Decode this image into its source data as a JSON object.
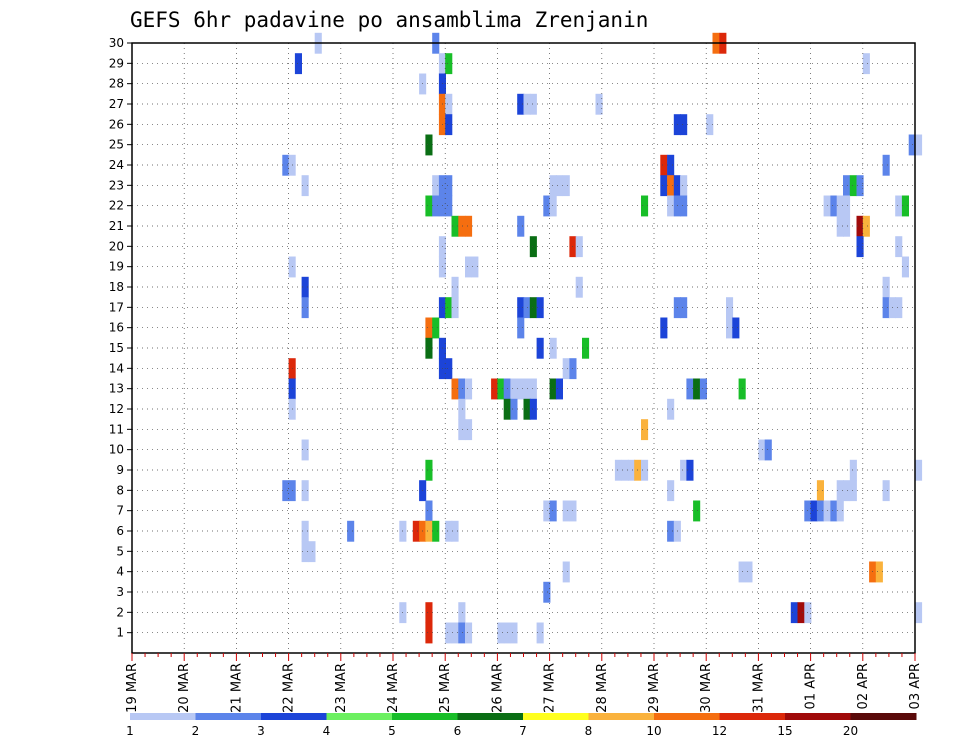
{
  "chart_data": {
    "type": "heatmap",
    "title": "GEFS 6hr padavine po ansamblima Zrenjanin",
    "xlabel": "",
    "ylabel": "",
    "x_tick_labels": [
      "19 MAR",
      "20 MAR",
      "21 MAR",
      "22 MAR",
      "23 MAR",
      "24 MAR",
      "25 MAR",
      "26 MAR",
      "27 MAR",
      "28 MAR",
      "29 MAR",
      "30 MAR",
      "31 MAR",
      "01 APR",
      "02 APR",
      "03 APR"
    ],
    "y_tick_labels": [
      "1",
      "2",
      "3",
      "4",
      "5",
      "6",
      "7",
      "8",
      "9",
      "10",
      "11",
      "12",
      "13",
      "14",
      "15",
      "16",
      "17",
      "18",
      "19",
      "20",
      "21",
      "22",
      "23",
      "24",
      "25",
      "26",
      "27",
      "28",
      "29",
      "30"
    ],
    "x_range_days": [
      0,
      15
    ],
    "y_range": [
      0,
      30
    ],
    "grid": true,
    "colorbar": {
      "labels": [
        "1",
        "2",
        "3",
        "4",
        "5",
        "6",
        "7",
        "8",
        "10",
        "12",
        "15",
        "20"
      ],
      "colors": [
        "#b8c8f4",
        "#5c84ea",
        "#1c44d8",
        "#6cf060",
        "#18be28",
        "#0a6e14",
        "#ffff1e",
        "#fab23c",
        "#f56e10",
        "#dc280a",
        "#a00a0a",
        "#5a0a0a"
      ]
    },
    "cells": [
      {
        "t": 11.12,
        "m": 30,
        "v": 10
      },
      {
        "t": 11.25,
        "m": 30,
        "v": 12
      },
      {
        "t": 3.5,
        "m": 30,
        "v": 1
      },
      {
        "t": 5.75,
        "m": 30,
        "v": 2
      },
      {
        "t": 3.12,
        "m": 29,
        "v": 3
      },
      {
        "t": 5.88,
        "m": 29,
        "v": 1
      },
      {
        "t": 6.0,
        "m": 29,
        "v": 5
      },
      {
        "t": 14.0,
        "m": 29,
        "v": 1
      },
      {
        "t": 5.88,
        "m": 28,
        "v": 3
      },
      {
        "t": 5.5,
        "m": 28,
        "v": 1
      },
      {
        "t": 5.88,
        "m": 27,
        "v": 10
      },
      {
        "t": 6.0,
        "m": 27,
        "v": 1
      },
      {
        "t": 7.38,
        "m": 27,
        "v": 3
      },
      {
        "t": 7.5,
        "m": 27,
        "v": 1
      },
      {
        "t": 7.62,
        "m": 27,
        "v": 1
      },
      {
        "t": 8.88,
        "m": 27,
        "v": 1
      },
      {
        "t": 5.88,
        "m": 26,
        "v": 10
      },
      {
        "t": 6.0,
        "m": 26,
        "v": 3
      },
      {
        "t": 10.38,
        "m": 26,
        "v": 3
      },
      {
        "t": 10.5,
        "m": 26,
        "v": 3
      },
      {
        "t": 11.0,
        "m": 26,
        "v": 1
      },
      {
        "t": 5.62,
        "m": 25,
        "v": 6
      },
      {
        "t": 14.88,
        "m": 25,
        "v": 2
      },
      {
        "t": 15.0,
        "m": 25,
        "v": 1
      },
      {
        "t": 2.88,
        "m": 24,
        "v": 2
      },
      {
        "t": 3.0,
        "m": 24,
        "v": 1
      },
      {
        "t": 10.12,
        "m": 24,
        "v": 12
      },
      {
        "t": 10.25,
        "m": 24,
        "v": 3
      },
      {
        "t": 14.38,
        "m": 24,
        "v": 2
      },
      {
        "t": 3.25,
        "m": 23,
        "v": 1
      },
      {
        "t": 5.75,
        "m": 23,
        "v": 1
      },
      {
        "t": 5.88,
        "m": 23,
        "v": 2
      },
      {
        "t": 6.0,
        "m": 23,
        "v": 2
      },
      {
        "t": 8.0,
        "m": 23,
        "v": 1
      },
      {
        "t": 8.12,
        "m": 23,
        "v": 1
      },
      {
        "t": 8.25,
        "m": 23,
        "v": 1
      },
      {
        "t": 10.12,
        "m": 23,
        "v": 3
      },
      {
        "t": 10.25,
        "m": 23,
        "v": 10
      },
      {
        "t": 10.38,
        "m": 23,
        "v": 3
      },
      {
        "t": 10.5,
        "m": 23,
        "v": 1
      },
      {
        "t": 13.62,
        "m": 23,
        "v": 2
      },
      {
        "t": 13.75,
        "m": 23,
        "v": 5
      },
      {
        "t": 13.88,
        "m": 23,
        "v": 2
      },
      {
        "t": 5.62,
        "m": 22,
        "v": 5
      },
      {
        "t": 5.75,
        "m": 22,
        "v": 2
      },
      {
        "t": 5.88,
        "m": 22,
        "v": 2
      },
      {
        "t": 6.0,
        "m": 22,
        "v": 2
      },
      {
        "t": 7.88,
        "m": 22,
        "v": 2
      },
      {
        "t": 8.0,
        "m": 22,
        "v": 1
      },
      {
        "t": 9.75,
        "m": 22,
        "v": 5
      },
      {
        "t": 10.25,
        "m": 22,
        "v": 1
      },
      {
        "t": 10.38,
        "m": 22,
        "v": 2
      },
      {
        "t": 10.5,
        "m": 22,
        "v": 2
      },
      {
        "t": 13.25,
        "m": 22,
        "v": 1
      },
      {
        "t": 13.38,
        "m": 22,
        "v": 2
      },
      {
        "t": 13.5,
        "m": 22,
        "v": 1
      },
      {
        "t": 13.62,
        "m": 22,
        "v": 1
      },
      {
        "t": 14.62,
        "m": 22,
        "v": 1
      },
      {
        "t": 14.75,
        "m": 22,
        "v": 5
      },
      {
        "t": 6.12,
        "m": 21,
        "v": 5
      },
      {
        "t": 6.25,
        "m": 21,
        "v": 10
      },
      {
        "t": 6.38,
        "m": 21,
        "v": 10
      },
      {
        "t": 7.38,
        "m": 21,
        "v": 2
      },
      {
        "t": 13.5,
        "m": 21,
        "v": 1
      },
      {
        "t": 13.62,
        "m": 21,
        "v": 1
      },
      {
        "t": 13.88,
        "m": 21,
        "v": 15
      },
      {
        "t": 14.0,
        "m": 21,
        "v": 8
      },
      {
        "t": 5.88,
        "m": 20,
        "v": 1
      },
      {
        "t": 7.62,
        "m": 20,
        "v": 6
      },
      {
        "t": 8.38,
        "m": 20,
        "v": 12
      },
      {
        "t": 8.5,
        "m": 20,
        "v": 1
      },
      {
        "t": 13.88,
        "m": 20,
        "v": 3
      },
      {
        "t": 14.62,
        "m": 20,
        "v": 1
      },
      {
        "t": 3.0,
        "m": 19,
        "v": 1
      },
      {
        "t": 5.88,
        "m": 19,
        "v": 1
      },
      {
        "t": 6.38,
        "m": 19,
        "v": 1
      },
      {
        "t": 6.5,
        "m": 19,
        "v": 1
      },
      {
        "t": 14.75,
        "m": 19,
        "v": 1
      },
      {
        "t": 3.25,
        "m": 18,
        "v": 3
      },
      {
        "t": 6.12,
        "m": 18,
        "v": 1
      },
      {
        "t": 8.5,
        "m": 18,
        "v": 1
      },
      {
        "t": 14.38,
        "m": 18,
        "v": 1
      },
      {
        "t": 3.25,
        "m": 17,
        "v": 2
      },
      {
        "t": 5.88,
        "m": 17,
        "v": 3
      },
      {
        "t": 6.0,
        "m": 17,
        "v": 5
      },
      {
        "t": 6.12,
        "m": 17,
        "v": 1
      },
      {
        "t": 7.38,
        "m": 17,
        "v": 3
      },
      {
        "t": 7.5,
        "m": 17,
        "v": 2
      },
      {
        "t": 7.62,
        "m": 17,
        "v": 6
      },
      {
        "t": 7.75,
        "m": 17,
        "v": 3
      },
      {
        "t": 10.38,
        "m": 17,
        "v": 2
      },
      {
        "t": 10.5,
        "m": 17,
        "v": 2
      },
      {
        "t": 11.38,
        "m": 17,
        "v": 1
      },
      {
        "t": 14.38,
        "m": 17,
        "v": 2
      },
      {
        "t": 14.5,
        "m": 17,
        "v": 1
      },
      {
        "t": 14.62,
        "m": 17,
        "v": 1
      },
      {
        "t": 5.62,
        "m": 16,
        "v": 10
      },
      {
        "t": 5.75,
        "m": 16,
        "v": 5
      },
      {
        "t": 7.38,
        "m": 16,
        "v": 2
      },
      {
        "t": 10.12,
        "m": 16,
        "v": 3
      },
      {
        "t": 11.38,
        "m": 16,
        "v": 1
      },
      {
        "t": 11.5,
        "m": 16,
        "v": 3
      },
      {
        "t": 5.62,
        "m": 15,
        "v": 6
      },
      {
        "t": 5.88,
        "m": 15,
        "v": 3
      },
      {
        "t": 7.75,
        "m": 15,
        "v": 3
      },
      {
        "t": 8.0,
        "m": 15,
        "v": 1
      },
      {
        "t": 8.62,
        "m": 15,
        "v": 5
      },
      {
        "t": 3.0,
        "m": 14,
        "v": 12
      },
      {
        "t": 5.88,
        "m": 14,
        "v": 3
      },
      {
        "t": 6.0,
        "m": 14,
        "v": 3
      },
      {
        "t": 8.25,
        "m": 14,
        "v": 1
      },
      {
        "t": 8.38,
        "m": 14,
        "v": 2
      },
      {
        "t": 3.0,
        "m": 13,
        "v": 3
      },
      {
        "t": 6.12,
        "m": 13,
        "v": 10
      },
      {
        "t": 6.25,
        "m": 13,
        "v": 2
      },
      {
        "t": 6.38,
        "m": 13,
        "v": 1
      },
      {
        "t": 6.88,
        "m": 13,
        "v": 12
      },
      {
        "t": 7.0,
        "m": 13,
        "v": 5
      },
      {
        "t": 7.12,
        "m": 13,
        "v": 2
      },
      {
        "t": 7.25,
        "m": 13,
        "v": 1
      },
      {
        "t": 7.38,
        "m": 13,
        "v": 1
      },
      {
        "t": 7.5,
        "m": 13,
        "v": 1
      },
      {
        "t": 7.62,
        "m": 13,
        "v": 1
      },
      {
        "t": 8.0,
        "m": 13,
        "v": 6
      },
      {
        "t": 8.12,
        "m": 13,
        "v": 3
      },
      {
        "t": 10.62,
        "m": 13,
        "v": 2
      },
      {
        "t": 10.75,
        "m": 13,
        "v": 6
      },
      {
        "t": 10.88,
        "m": 13,
        "v": 2
      },
      {
        "t": 11.62,
        "m": 13,
        "v": 5
      },
      {
        "t": 3.0,
        "m": 12,
        "v": 1
      },
      {
        "t": 6.25,
        "m": 12,
        "v": 1
      },
      {
        "t": 7.12,
        "m": 12,
        "v": 6
      },
      {
        "t": 7.25,
        "m": 12,
        "v": 2
      },
      {
        "t": 7.5,
        "m": 12,
        "v": 6
      },
      {
        "t": 7.62,
        "m": 12,
        "v": 3
      },
      {
        "t": 10.25,
        "m": 12,
        "v": 1
      },
      {
        "t": 6.25,
        "m": 11,
        "v": 1
      },
      {
        "t": 6.38,
        "m": 11,
        "v": 1
      },
      {
        "t": 9.75,
        "m": 11,
        "v": 8
      },
      {
        "t": 3.25,
        "m": 10,
        "v": 1
      },
      {
        "t": 12.0,
        "m": 10,
        "v": 1
      },
      {
        "t": 12.12,
        "m": 10,
        "v": 2
      },
      {
        "t": 5.62,
        "m": 9,
        "v": 5
      },
      {
        "t": 9.25,
        "m": 9,
        "v": 1
      },
      {
        "t": 9.38,
        "m": 9,
        "v": 1
      },
      {
        "t": 9.5,
        "m": 9,
        "v": 1
      },
      {
        "t": 9.62,
        "m": 9,
        "v": 8
      },
      {
        "t": 9.75,
        "m": 9,
        "v": 1
      },
      {
        "t": 10.5,
        "m": 9,
        "v": 1
      },
      {
        "t": 10.62,
        "m": 9,
        "v": 3
      },
      {
        "t": 13.75,
        "m": 9,
        "v": 1
      },
      {
        "t": 15.0,
        "m": 9,
        "v": 1
      },
      {
        "t": 2.88,
        "m": 8,
        "v": 2
      },
      {
        "t": 3.0,
        "m": 8,
        "v": 2
      },
      {
        "t": 3.25,
        "m": 8,
        "v": 1
      },
      {
        "t": 5.5,
        "m": 8,
        "v": 3
      },
      {
        "t": 10.25,
        "m": 8,
        "v": 1
      },
      {
        "t": 13.12,
        "m": 8,
        "v": 8
      },
      {
        "t": 13.5,
        "m": 8,
        "v": 1
      },
      {
        "t": 13.62,
        "m": 8,
        "v": 1
      },
      {
        "t": 13.75,
        "m": 8,
        "v": 1
      },
      {
        "t": 14.38,
        "m": 8,
        "v": 1
      },
      {
        "t": 5.62,
        "m": 7,
        "v": 2
      },
      {
        "t": 7.88,
        "m": 7,
        "v": 1
      },
      {
        "t": 8.0,
        "m": 7,
        "v": 2
      },
      {
        "t": 8.25,
        "m": 7,
        "v": 1
      },
      {
        "t": 8.38,
        "m": 7,
        "v": 1
      },
      {
        "t": 10.75,
        "m": 7,
        "v": 5
      },
      {
        "t": 12.88,
        "m": 7,
        "v": 2
      },
      {
        "t": 13.0,
        "m": 7,
        "v": 3
      },
      {
        "t": 13.12,
        "m": 7,
        "v": 2
      },
      {
        "t": 13.25,
        "m": 7,
        "v": 1
      },
      {
        "t": 13.38,
        "m": 7,
        "v": 2
      },
      {
        "t": 13.5,
        "m": 7,
        "v": 1
      },
      {
        "t": 3.25,
        "m": 6,
        "v": 1
      },
      {
        "t": 4.12,
        "m": 6,
        "v": 2
      },
      {
        "t": 5.12,
        "m": 6,
        "v": 1
      },
      {
        "t": 5.38,
        "m": 6,
        "v": 12
      },
      {
        "t": 5.5,
        "m": 6,
        "v": 10
      },
      {
        "t": 5.62,
        "m": 6,
        "v": 8
      },
      {
        "t": 5.75,
        "m": 6,
        "v": 5
      },
      {
        "t": 6.0,
        "m": 6,
        "v": 1
      },
      {
        "t": 6.12,
        "m": 6,
        "v": 1
      },
      {
        "t": 10.25,
        "m": 6,
        "v": 2
      },
      {
        "t": 10.38,
        "m": 6,
        "v": 1
      },
      {
        "t": 3.25,
        "m": 5,
        "v": 1
      },
      {
        "t": 3.38,
        "m": 5,
        "v": 1
      },
      {
        "t": 8.25,
        "m": 4,
        "v": 1
      },
      {
        "t": 11.62,
        "m": 4,
        "v": 1
      },
      {
        "t": 11.75,
        "m": 4,
        "v": 1
      },
      {
        "t": 14.12,
        "m": 4,
        "v": 10
      },
      {
        "t": 14.25,
        "m": 4,
        "v": 8
      },
      {
        "t": 7.88,
        "m": 3,
        "v": 2
      },
      {
        "t": 5.12,
        "m": 2,
        "v": 1
      },
      {
        "t": 5.62,
        "m": 2,
        "v": 12
      },
      {
        "t": 6.25,
        "m": 2,
        "v": 1
      },
      {
        "t": 12.62,
        "m": 2,
        "v": 3
      },
      {
        "t": 12.75,
        "m": 2,
        "v": 15
      },
      {
        "t": 12.88,
        "m": 2,
        "v": 1
      },
      {
        "t": 15.0,
        "m": 2,
        "v": 1
      },
      {
        "t": 5.62,
        "m": 1,
        "v": 12
      },
      {
        "t": 6.0,
        "m": 1,
        "v": 1
      },
      {
        "t": 6.12,
        "m": 1,
        "v": 1
      },
      {
        "t": 6.25,
        "m": 1,
        "v": 2
      },
      {
        "t": 6.38,
        "m": 1,
        "v": 1
      },
      {
        "t": 7.0,
        "m": 1,
        "v": 1
      },
      {
        "t": 7.12,
        "m": 1,
        "v": 1
      },
      {
        "t": 7.25,
        "m": 1,
        "v": 1
      },
      {
        "t": 7.75,
        "m": 1,
        "v": 1
      }
    ]
  }
}
